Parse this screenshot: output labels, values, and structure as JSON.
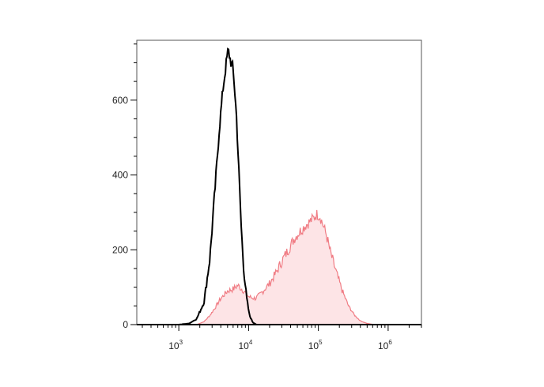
{
  "chart_data": {
    "type": "area",
    "title": "",
    "xlabel": "",
    "ylabel": "",
    "x_scale": "log",
    "xlim": [
      250,
      3000000
    ],
    "ylim": [
      0,
      760
    ],
    "x_ticks": [
      {
        "value": 1000,
        "base": "10",
        "exp": "3"
      },
      {
        "value": 10000,
        "base": "10",
        "exp": "4"
      },
      {
        "value": 100000,
        "base": "10",
        "exp": "5"
      },
      {
        "value": 1000000,
        "base": "10",
        "exp": "6"
      }
    ],
    "y_ticks": [
      {
        "value": 0,
        "label": "0"
      },
      {
        "value": 200,
        "label": "200"
      },
      {
        "value": 400,
        "label": "400"
      },
      {
        "value": 600,
        "label": "600"
      }
    ],
    "grid": false,
    "legend": "none",
    "series": [
      {
        "style": "line",
        "color": "#000000",
        "x": [
          1000,
          1400,
          1800,
          2300,
          2800,
          3300,
          3800,
          4300,
          4800,
          5100,
          5300,
          5600,
          5900,
          6200,
          6700,
          7300,
          7900,
          8600,
          9400,
          10300,
          11500,
          13000
        ],
        "y": [
          0,
          3,
          15,
          60,
          180,
          360,
          520,
          630,
          700,
          735,
          720,
          700,
          690,
          650,
          560,
          400,
          250,
          140,
          70,
          25,
          6,
          0
        ]
      },
      {
        "style": "area",
        "color": "#f07c84",
        "fill": "#fde4e6",
        "x": [
          1800,
          2300,
          2800,
          3300,
          4000,
          5000,
          6000,
          7000,
          8000,
          9000,
          10000,
          11000,
          12500,
          14500,
          17000,
          20000,
          25000,
          30000,
          37000,
          45000,
          55000,
          65000,
          75000,
          85000,
          95000,
          105000,
          115000,
          130000,
          150000,
          180000,
          220000,
          270000,
          330000,
          400000,
          500000,
          650000
        ],
        "y": [
          0,
          8,
          25,
          45,
          70,
          90,
          95,
          105,
          95,
          85,
          75,
          72,
          70,
          80,
          95,
          110,
          140,
          170,
          200,
          230,
          250,
          265,
          275,
          285,
          295,
          290,
          270,
          240,
          190,
          140,
          90,
          50,
          25,
          10,
          3,
          0
        ]
      }
    ]
  }
}
